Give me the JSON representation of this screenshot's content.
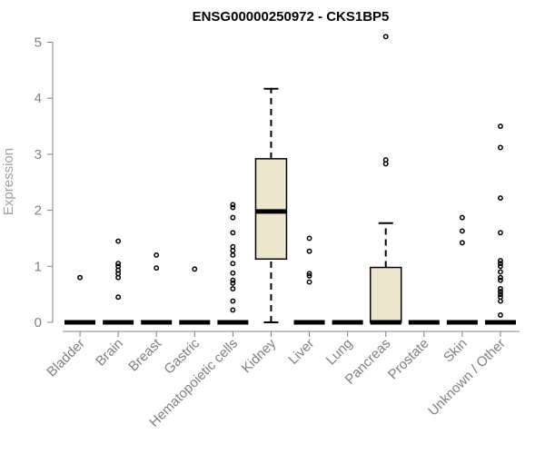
{
  "chart_data": {
    "type": "box",
    "title": "ENSG00000250972 - CKS1BP5",
    "xlabel": "",
    "ylabel": "Expression",
    "ylim": [
      0,
      5
    ],
    "yticks": [
      0,
      1,
      2,
      3,
      4,
      5
    ],
    "box_fill": "#ede6cc",
    "categories": [
      "Bladder",
      "Brain",
      "Breast",
      "Gastric",
      "Hematopoietic cells",
      "Kidney",
      "Liver",
      "Lung",
      "Pancreas",
      "Prostate",
      "Skin",
      "Unknown / Other"
    ],
    "boxes": [
      {
        "category": "Bladder",
        "min": 0,
        "q1": 0,
        "median": 0,
        "q3": 0,
        "max": 0,
        "outliers": [
          0.8
        ]
      },
      {
        "category": "Brain",
        "min": 0,
        "q1": 0,
        "median": 0,
        "q3": 0,
        "max": 0,
        "outliers": [
          0.45,
          0.8,
          0.87,
          0.93,
          1.0,
          1.05,
          1.45
        ]
      },
      {
        "category": "Breast",
        "min": 0,
        "q1": 0,
        "median": 0,
        "q3": 0,
        "max": 0,
        "outliers": [
          0.97,
          1.2
        ]
      },
      {
        "category": "Gastric",
        "min": 0,
        "q1": 0,
        "median": 0,
        "q3": 0,
        "max": 0,
        "outliers": [
          0.95
        ]
      },
      {
        "category": "Hematopoietic cells",
        "min": 0,
        "q1": 0,
        "median": 0,
        "q3": 0,
        "max": 0,
        "outliers": [
          0.22,
          0.38,
          0.6,
          0.7,
          0.75,
          0.88,
          1.05,
          1.2,
          1.28,
          1.35,
          1.6,
          1.87,
          2.05,
          2.1
        ]
      },
      {
        "category": "Kidney",
        "min": 0,
        "q1": 1.13,
        "median": 1.98,
        "q3": 2.92,
        "max": 4.17,
        "outliers": []
      },
      {
        "category": "Liver",
        "min": 0,
        "q1": 0,
        "median": 0,
        "q3": 0,
        "max": 0,
        "outliers": [
          0.72,
          0.83,
          0.87,
          1.27,
          1.5
        ]
      },
      {
        "category": "Lung",
        "min": 0,
        "q1": 0,
        "median": 0,
        "q3": 0,
        "max": 0,
        "outliers": []
      },
      {
        "category": "Pancreas",
        "min": 0,
        "q1": 0,
        "median": 0,
        "q3": 0.98,
        "max": 1.77,
        "outliers": [
          2.83,
          2.9,
          5.1
        ]
      },
      {
        "category": "Prostate",
        "min": 0,
        "q1": 0,
        "median": 0,
        "q3": 0,
        "max": 0,
        "outliers": []
      },
      {
        "category": "Skin",
        "min": 0,
        "q1": 0,
        "median": 0,
        "q3": 0,
        "max": 0,
        "outliers": [
          1.42,
          1.63,
          1.87
        ]
      },
      {
        "category": "Unknown / Other",
        "min": 0,
        "q1": 0,
        "median": 0,
        "q3": 0,
        "max": 0,
        "outliers": [
          0.13,
          0.38,
          0.45,
          0.5,
          0.55,
          0.6,
          0.75,
          0.8,
          0.9,
          1.0,
          1.05,
          1.1,
          1.6,
          2.22,
          3.12,
          3.5
        ]
      }
    ]
  }
}
